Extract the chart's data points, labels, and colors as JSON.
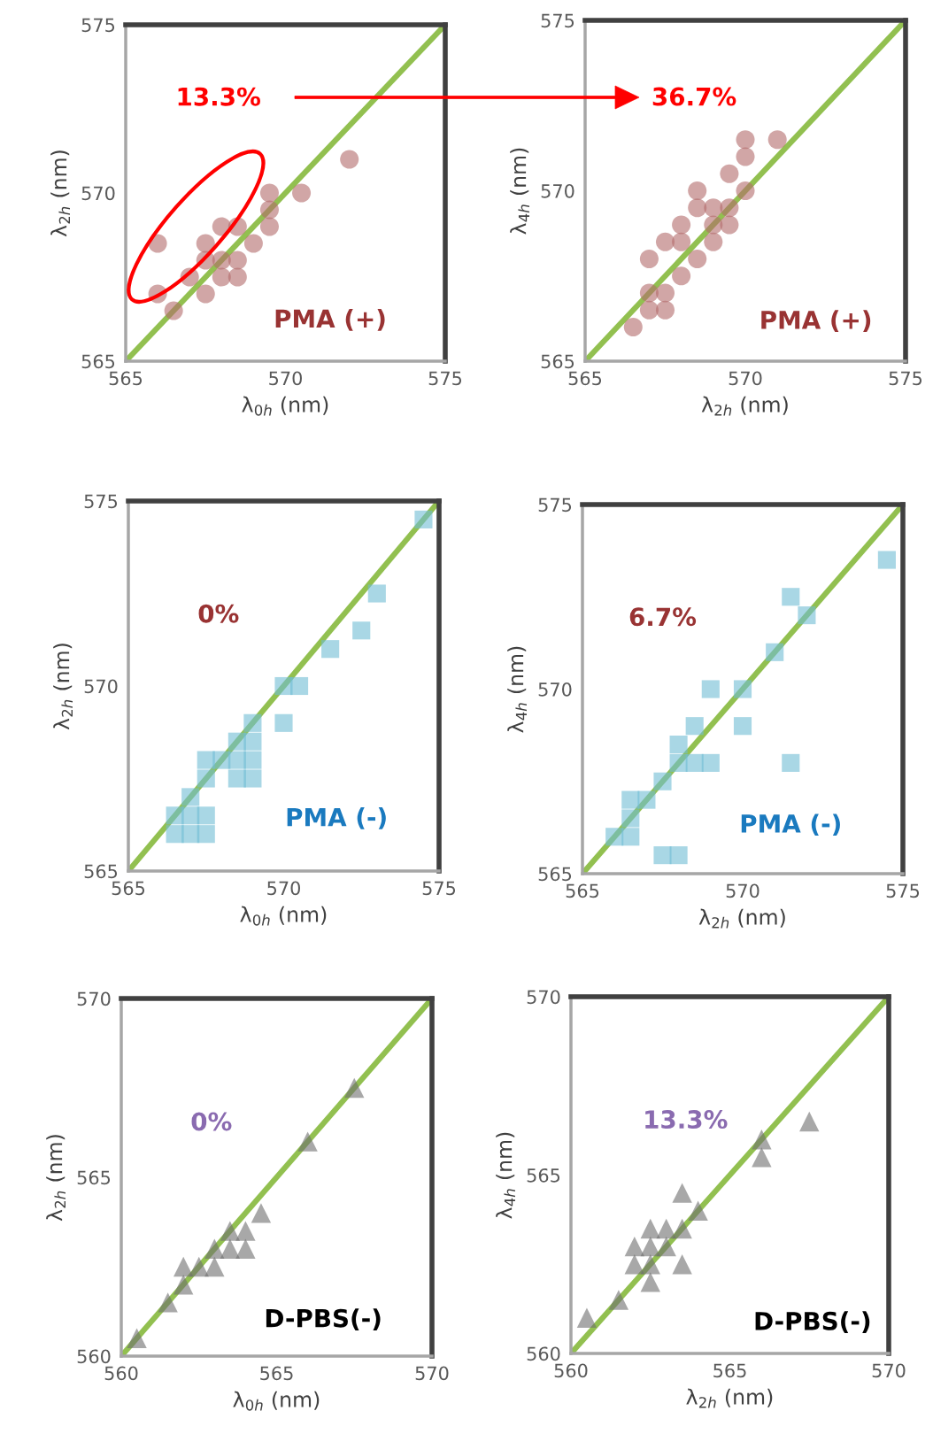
{
  "chart_data": [
    {
      "type": "scatter",
      "xlabel": "λ$_{0h}$ (nm)",
      "ylabel": "λ$_{2h}$ (nm)",
      "xlim": [
        565,
        575
      ],
      "ylim": [
        565,
        575
      ],
      "xticks": [
        565,
        570,
        575
      ],
      "yticks": [
        565,
        570,
        575
      ],
      "marker": "circle",
      "annotations": [
        "13.3%",
        "PMA (+)"
      ],
      "series": [
        {
          "color": "#b36b6b",
          "x": [
            572,
            570.5,
            569.5,
            569.5,
            569.5,
            569,
            568.5,
            568,
            568.5,
            568,
            567.5,
            567.5,
            568,
            568.5,
            567,
            567.5,
            566,
            566,
            566.5
          ],
          "values": [
            571,
            570,
            570,
            569.5,
            569,
            568.5,
            569,
            569,
            568,
            568,
            568.5,
            568,
            567.5,
            567.5,
            567.5,
            567,
            568.5,
            567,
            566.5
          ]
        },
        {
          "type": "line",
          "color": "#92c050",
          "marker": "none",
          "x": [
            565,
            575
          ],
          "values": [
            565,
            575
          ]
        }
      ]
    },
    {
      "type": "scatter",
      "xlabel": "λ$_{2h}$ (nm)",
      "ylabel": "λ$_{4h}$ (nm)",
      "xlim": [
        565,
        575
      ],
      "ylim": [
        565,
        575
      ],
      "xticks": [
        565,
        570,
        575
      ],
      "yticks": [
        565,
        570,
        575
      ],
      "marker": "circle",
      "annotations": [
        "36.7%",
        "PMA (+)"
      ],
      "series": [
        {
          "color": "#b36b6b",
          "x": [
            570,
            571,
            570,
            569.5,
            570,
            568.5,
            568.5,
            569,
            569.5,
            569,
            569.5,
            568,
            567.5,
            568,
            569,
            567,
            568.5,
            568,
            567,
            567.5,
            567,
            567.5,
            566.5
          ],
          "values": [
            571.5,
            571.5,
            571,
            570.5,
            570,
            570,
            569.5,
            569.5,
            569.5,
            569,
            569,
            569,
            568.5,
            568.5,
            568.5,
            568,
            568,
            567.5,
            567,
            567,
            566.5,
            566.5,
            566
          ]
        },
        {
          "type": "line",
          "color": "#92c050",
          "marker": "none",
          "x": [
            565,
            575
          ],
          "values": [
            565,
            575
          ]
        }
      ]
    },
    {
      "type": "scatter",
      "xlabel": "λ$_{0h}$ (nm)",
      "ylabel": "λ$_{2h}$ (nm)",
      "xlim": [
        565,
        575
      ],
      "ylim": [
        565,
        575
      ],
      "xticks": [
        565,
        570,
        575
      ],
      "yticks": [
        565,
        570,
        575
      ],
      "marker": "square",
      "annotations": [
        "0%",
        "PMA (-)"
      ],
      "series": [
        {
          "color": "#6fbdd3",
          "x": [
            574.5,
            573,
            572.5,
            571.5,
            570,
            570.5,
            570,
            569,
            568.5,
            569,
            567.5,
            568,
            568.5,
            569,
            567.5,
            568.5,
            569,
            567,
            566.5,
            567,
            567.5,
            566.5,
            567,
            567.5
          ],
          "values": [
            574.5,
            572.5,
            571.5,
            571,
            570,
            570,
            569,
            569,
            568.5,
            568.5,
            568,
            568,
            568,
            568,
            567.5,
            567.5,
            567.5,
            567,
            566.5,
            566.5,
            566.5,
            566,
            566,
            566
          ]
        },
        {
          "type": "line",
          "color": "#92c050",
          "marker": "none",
          "x": [
            565,
            575
          ],
          "values": [
            565,
            575
          ]
        }
      ]
    },
    {
      "type": "scatter",
      "xlabel": "λ$_{2h}$ (nm)",
      "ylabel": "λ$_{4h}$ (nm)",
      "xlim": [
        565,
        575
      ],
      "ylim": [
        565,
        575
      ],
      "xticks": [
        565,
        570,
        575
      ],
      "yticks": [
        565,
        570,
        575
      ],
      "marker": "square",
      "annotations": [
        "6.7%",
        "PMA (-)"
      ],
      "series": [
        {
          "color": "#6fbdd3",
          "x": [
            574.5,
            571.5,
            572,
            571,
            569,
            570,
            570,
            568.5,
            568,
            568,
            568.5,
            569,
            571.5,
            567.5,
            566.5,
            567,
            566.5,
            566,
            566.5,
            567.5,
            568
          ],
          "values": [
            573.5,
            572.5,
            572,
            571,
            570,
            570,
            569,
            569,
            568.5,
            568,
            568,
            568,
            568,
            567.5,
            567,
            567,
            566.5,
            566,
            566,
            565.5,
            565.5
          ]
        },
        {
          "type": "line",
          "color": "#92c050",
          "marker": "none",
          "x": [
            565,
            575
          ],
          "values": [
            565,
            575
          ]
        }
      ]
    },
    {
      "type": "scatter",
      "xlabel": "λ$_{0h}$ (nm)",
      "ylabel": "λ$_{2h}$ (nm)",
      "xlim": [
        560,
        570
      ],
      "ylim": [
        560,
        570
      ],
      "xticks": [
        560,
        565,
        570
      ],
      "yticks": [
        560,
        565,
        570
      ],
      "marker": "triangle",
      "annotations": [
        "0%",
        "D-PBS(-)"
      ],
      "series": [
        {
          "color": "#6e6e6e",
          "x": [
            567.5,
            566,
            564.5,
            564,
            563.5,
            563.5,
            564,
            563,
            563,
            562,
            562.5,
            562,
            561.5,
            560.5
          ],
          "values": [
            567.5,
            566,
            564,
            563.5,
            563.5,
            563,
            563,
            563,
            562.5,
            562.5,
            562.5,
            562,
            561.5,
            560.5
          ]
        },
        {
          "type": "line",
          "color": "#92c050",
          "marker": "none",
          "x": [
            560,
            570
          ],
          "values": [
            560,
            570
          ]
        }
      ]
    },
    {
      "type": "scatter",
      "xlabel": "λ$_{2h}$ (nm)",
      "ylabel": "λ$_{4h}$ (nm)",
      "xlim": [
        560,
        570
      ],
      "ylim": [
        560,
        570
      ],
      "xticks": [
        560,
        565,
        570
      ],
      "yticks": [
        560,
        565,
        570
      ],
      "marker": "triangle",
      "annotations": [
        "13.3%",
        "D-PBS(-)"
      ],
      "series": [
        {
          "color": "#6e6e6e",
          "x": [
            567.5,
            566,
            566,
            563.5,
            564,
            562.5,
            563,
            563.5,
            562,
            562.5,
            563,
            562,
            562.5,
            563.5,
            562.5,
            561.5,
            560.5
          ],
          "values": [
            566.5,
            566,
            565.5,
            564.5,
            564,
            563.5,
            563.5,
            563.5,
            563,
            563,
            563,
            562.5,
            562.5,
            562.5,
            562,
            561.5,
            561
          ]
        },
        {
          "type": "line",
          "color": "#92c050",
          "marker": "none",
          "x": [
            560,
            570
          ],
          "values": [
            560,
            570
          ]
        }
      ]
    }
  ]
}
